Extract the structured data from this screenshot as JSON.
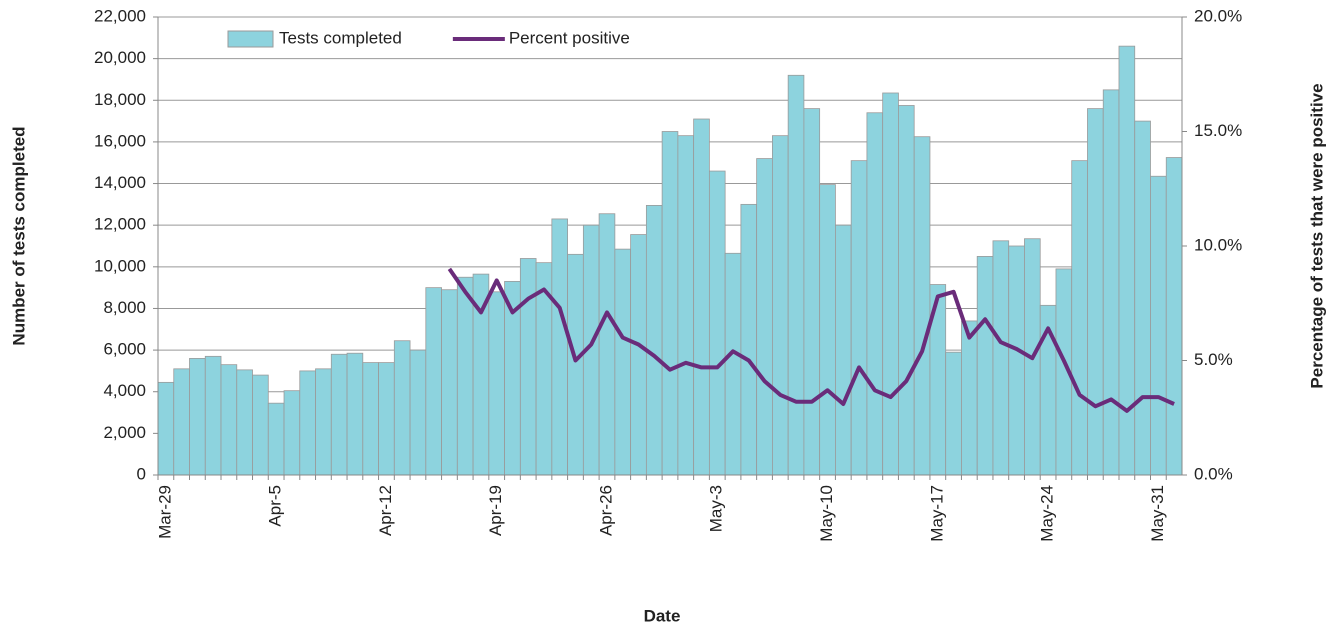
{
  "chart_data": {
    "type": "bar-line",
    "x_label": "Date",
    "y_label": "Number of tests completed",
    "y2_label": "Percentage of tests that were positive",
    "categories": [
      "Mar-29",
      null,
      null,
      null,
      null,
      null,
      null,
      "Apr-5",
      null,
      null,
      null,
      null,
      null,
      null,
      "Apr-12",
      null,
      null,
      null,
      null,
      null,
      null,
      "Apr-19",
      null,
      null,
      null,
      null,
      null,
      null,
      "Apr-26",
      null,
      null,
      null,
      null,
      null,
      null,
      "May-3",
      null,
      null,
      null,
      null,
      null,
      null,
      "May-10",
      null,
      null,
      null,
      null,
      null,
      null,
      "May-17",
      null,
      null,
      null,
      null,
      null,
      null,
      "May-24",
      null,
      null,
      null,
      null,
      null,
      null,
      "May-31",
      null
    ],
    "series": [
      {
        "name": "Tests completed",
        "kind": "bar",
        "color": "#8dd3de",
        "values": [
          4450,
          5100,
          5600,
          5700,
          5300,
          5050,
          4800,
          3450,
          4050,
          5000,
          5100,
          5800,
          5850,
          5400,
          5400,
          6450,
          6000,
          9000,
          8900,
          9500,
          9650,
          8800,
          9300,
          10400,
          10200,
          12300,
          10600,
          12000,
          12550,
          10850,
          11550,
          12950,
          16500,
          16300,
          17100,
          14600,
          10650,
          13000,
          15200,
          16300,
          19200,
          17600,
          13950,
          12000,
          15100,
          17400,
          18350,
          17750,
          16250,
          9150,
          5900,
          7400,
          10500,
          11250,
          11000,
          11350,
          8150,
          9900,
          15100,
          17600,
          18500,
          20600,
          17000,
          14350,
          15250
        ]
      },
      {
        "name": "Percent positive",
        "kind": "line",
        "axis": "y2",
        "color": "#6a2c7a",
        "values": [
          null,
          null,
          null,
          null,
          null,
          null,
          null,
          null,
          null,
          null,
          null,
          null,
          null,
          null,
          null,
          null,
          null,
          null,
          9.0,
          8.0,
          7.1,
          8.5,
          7.1,
          7.7,
          8.1,
          7.3,
          5.0,
          5.7,
          7.1,
          6.0,
          5.7,
          5.2,
          4.6,
          4.9,
          4.7,
          4.7,
          5.4,
          5.0,
          4.1,
          3.5,
          3.2,
          3.2,
          3.7,
          3.1,
          4.7,
          3.7,
          3.4,
          4.1,
          5.4,
          7.8,
          8.0,
          6.0,
          6.8,
          5.8,
          5.5,
          5.1,
          6.4,
          5.0,
          3.5,
          3.0,
          3.3,
          2.8,
          3.4,
          3.4,
          3.1
        ]
      }
    ],
    "ylim": [
      0,
      22000
    ],
    "yticks": [
      0,
      {
        "value": 2000,
        "label": "2,000"
      },
      {
        "value": 4000,
        "label": "4,000"
      },
      {
        "value": 6000,
        "label": "6,000"
      },
      {
        "value": 8000,
        "label": "8,000"
      },
      {
        "value": 10000,
        "label": "10,000"
      },
      {
        "value": 12000,
        "label": "12,000"
      },
      {
        "value": 14000,
        "label": "14,000"
      },
      {
        "value": 16000,
        "label": "16,000"
      },
      {
        "value": 18000,
        "label": "18,000"
      },
      {
        "value": 20000,
        "label": "20,000"
      },
      {
        "value": 22000,
        "label": "22,000"
      }
    ],
    "y2lim": [
      0,
      20
    ],
    "y2ticks": [
      {
        "value": 0,
        "label": "0.0%"
      },
      {
        "value": 5,
        "label": "5.0%"
      },
      {
        "value": 10,
        "label": "10.0%"
      },
      {
        "value": 15,
        "label": "15.0%"
      },
      {
        "value": 20,
        "label": "20.0%"
      }
    ],
    "grid": true,
    "legend": "top"
  }
}
